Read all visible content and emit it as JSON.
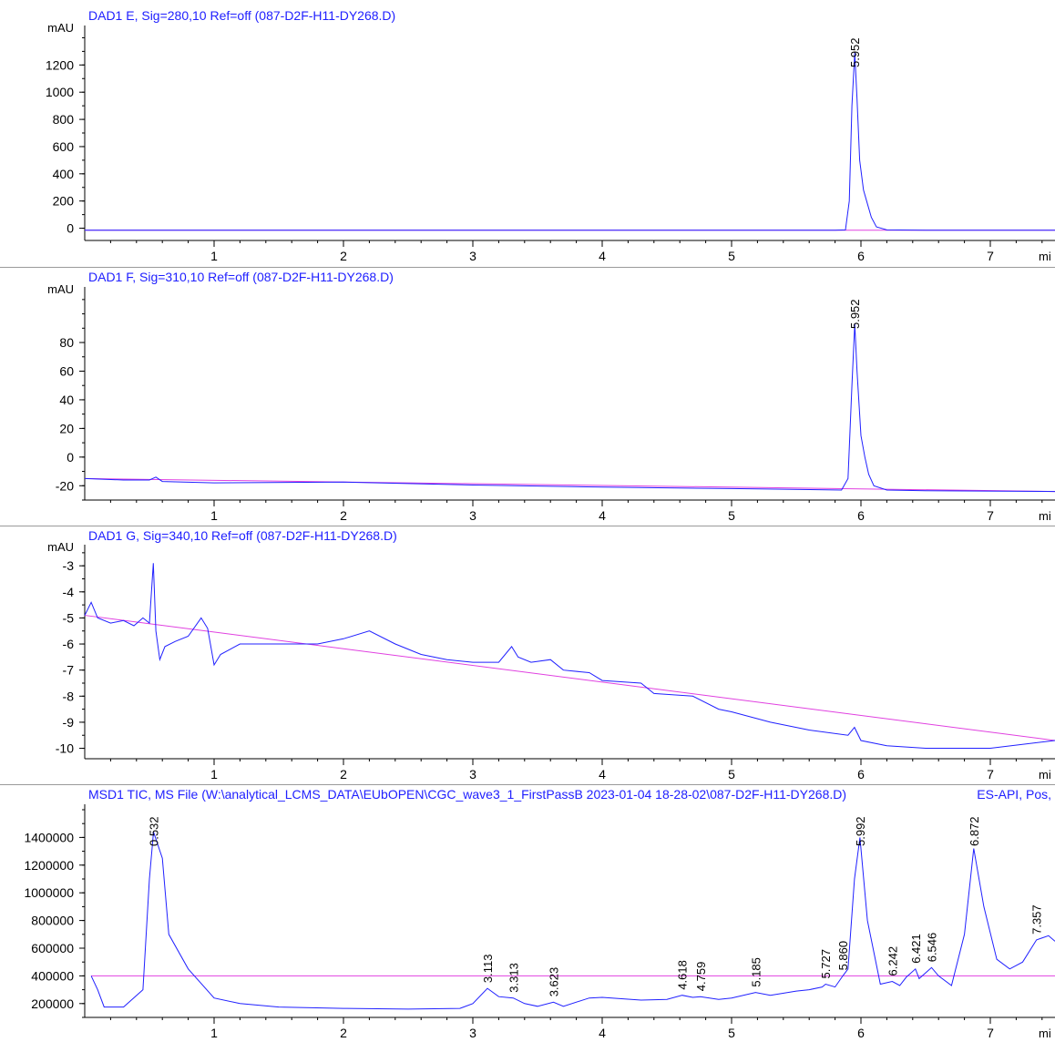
{
  "colors": {
    "trace": "#2020ff",
    "baseline": "#e040e0",
    "axis": "#000000",
    "title": "#2020ff"
  },
  "chart_data": [
    {
      "type": "line",
      "title": "DAD1 E, Sig=280,10 Ref=off (087-D2F-H11-DY268.D)",
      "ylabel": "mAU",
      "xunit": "mi",
      "xlim": [
        0.0,
        7.5
      ],
      "ylim": [
        -90,
        1450
      ],
      "xticks": [
        1,
        2,
        3,
        4,
        5,
        6,
        7
      ],
      "yticks": [
        0,
        200,
        400,
        600,
        800,
        1000,
        1200
      ],
      "series": [
        {
          "x": [
            0.0,
            2.0,
            4.0,
            5.8,
            5.88,
            5.91,
            5.93,
            5.952,
            5.97,
            5.99,
            6.02,
            6.05,
            6.08,
            6.12,
            6.2,
            6.5,
            7.5
          ],
          "y": [
            -15,
            -15,
            -15,
            -15,
            -12,
            200,
            900,
            1290,
            950,
            500,
            280,
            180,
            80,
            10,
            -12,
            -15,
            -15
          ]
        }
      ],
      "annotations": [
        {
          "x": 5.952,
          "label": "5.952"
        }
      ]
    },
    {
      "type": "line",
      "title": "DAD1 F, Sig=310,10 Ref=off (087-D2F-H11-DY268.D)",
      "ylabel": "mAU",
      "xunit": "mi",
      "xlim": [
        0.0,
        7.5
      ],
      "ylim": [
        -30,
        115
      ],
      "xticks": [
        1,
        2,
        3,
        4,
        5,
        6,
        7
      ],
      "yticks": [
        -20,
        0,
        20,
        40,
        60,
        80
      ],
      "series": [
        {
          "x": [
            0.0,
            0.3,
            0.5,
            0.55,
            0.6,
            1.0,
            2.0,
            3.0,
            4.0,
            5.0,
            5.85,
            5.9,
            5.93,
            5.952,
            5.97,
            6.0,
            6.03,
            6.06,
            6.1,
            6.2,
            6.5,
            7.5
          ],
          "y": [
            -15,
            -16,
            -16,
            -14,
            -17,
            -18,
            -17.5,
            -19.5,
            -21,
            -22,
            -23,
            -15,
            50,
            93,
            60,
            15,
            0,
            -12,
            -20,
            -23,
            -23.5,
            -24
          ]
        }
      ],
      "annotations": [
        {
          "x": 5.952,
          "label": "5.952"
        }
      ]
    },
    {
      "type": "line",
      "title": "DAD1 G, Sig=340,10 Ref=off (087-D2F-H11-DY268.D)",
      "ylabel": "mAU",
      "xunit": "mi",
      "xlim": [
        0.0,
        7.5
      ],
      "ylim": [
        -10.4,
        -2.4
      ],
      "xticks": [
        1,
        2,
        3,
        4,
        5,
        6,
        7
      ],
      "yticks": [
        -10,
        -9,
        -8,
        -7,
        -6,
        -5,
        -4,
        -3
      ],
      "series": [
        {
          "x": [
            0.0,
            0.05,
            0.1,
            0.2,
            0.3,
            0.38,
            0.45,
            0.5,
            0.53,
            0.55,
            0.58,
            0.62,
            0.7,
            0.8,
            0.9,
            0.95,
            1.0,
            1.05,
            1.2,
            1.5,
            1.8,
            2.0,
            2.2,
            2.4,
            2.6,
            2.8,
            3.0,
            3.2,
            3.3,
            3.35,
            3.45,
            3.6,
            3.7,
            3.9,
            4.0,
            4.3,
            4.4,
            4.7,
            4.9,
            5.0,
            5.3,
            5.6,
            5.9,
            5.95,
            6.0,
            6.2,
            6.5,
            7.0,
            7.5
          ],
          "y": [
            -4.9,
            -4.4,
            -5.0,
            -5.2,
            -5.1,
            -5.3,
            -5.0,
            -5.2,
            -2.9,
            -5.5,
            -6.6,
            -6.1,
            -5.9,
            -5.7,
            -5.0,
            -5.4,
            -6.8,
            -6.4,
            -6.0,
            -6.0,
            -6.0,
            -5.8,
            -5.5,
            -6.0,
            -6.4,
            -6.6,
            -6.7,
            -6.7,
            -6.1,
            -6.5,
            -6.7,
            -6.6,
            -7.0,
            -7.1,
            -7.4,
            -7.5,
            -7.9,
            -8.0,
            -8.5,
            -8.6,
            -9.0,
            -9.3,
            -9.5,
            -9.2,
            -9.7,
            -9.9,
            -10.0,
            -10.0,
            -9.7
          ]
        }
      ],
      "annotations": []
    },
    {
      "type": "line",
      "title": "MSD1 TIC, MS File (W:\\analytical_LCMS_DATA\\EUbOPEN\\CGC_wave3_1_FirstPassB 2023-01-04 18-28-02\\087-D2F-H11-DY268.D)",
      "title_right": "ES-API, Pos,",
      "ylabel": "",
      "xunit": "mi",
      "xlim": [
        0.0,
        7.5
      ],
      "ylim": [
        100000,
        1600000
      ],
      "xticks": [
        1,
        2,
        3,
        4,
        5,
        6,
        7
      ],
      "yticks": [
        200000,
        400000,
        600000,
        800000,
        1000000,
        1200000,
        1400000
      ],
      "series": [
        {
          "x": [
            0.05,
            0.1,
            0.15,
            0.3,
            0.45,
            0.5,
            0.532,
            0.6,
            0.65,
            0.8,
            1.0,
            1.2,
            1.5,
            2.0,
            2.5,
            2.9,
            3.0,
            3.113,
            3.2,
            3.313,
            3.4,
            3.5,
            3.623,
            3.7,
            3.9,
            4.0,
            4.3,
            4.5,
            4.618,
            4.7,
            4.759,
            4.9,
            5.0,
            5.185,
            5.3,
            5.5,
            5.6,
            5.7,
            5.727,
            5.8,
            5.86,
            5.9,
            5.95,
            5.992,
            6.05,
            6.15,
            6.242,
            6.3,
            6.35,
            6.421,
            6.45,
            6.546,
            6.6,
            6.7,
            6.8,
            6.872,
            6.95,
            7.05,
            7.15,
            7.25,
            7.357,
            7.45,
            7.5
          ],
          "y": [
            400000,
            300000,
            175000,
            175000,
            300000,
            1100000,
            1440000,
            1250000,
            700000,
            450000,
            240000,
            200000,
            175000,
            165000,
            160000,
            165000,
            200000,
            310000,
            250000,
            240000,
            200000,
            180000,
            210000,
            180000,
            240000,
            245000,
            225000,
            230000,
            260000,
            245000,
            250000,
            230000,
            240000,
            280000,
            260000,
            290000,
            300000,
            320000,
            340000,
            320000,
            400000,
            450000,
            1100000,
            1400000,
            800000,
            340000,
            360000,
            330000,
            390000,
            450000,
            380000,
            460000,
            400000,
            330000,
            700000,
            1320000,
            900000,
            520000,
            450000,
            500000,
            660000,
            690000,
            650000
          ]
        }
      ],
      "annotations": [
        {
          "x": 0.532,
          "label": "0.532"
        },
        {
          "x": 3.113,
          "label": "3.113"
        },
        {
          "x": 3.313,
          "label": "3.313"
        },
        {
          "x": 3.623,
          "label": "3.623"
        },
        {
          "x": 4.618,
          "label": "4.618"
        },
        {
          "x": 4.759,
          "label": "4.759"
        },
        {
          "x": 5.185,
          "label": "5.185"
        },
        {
          "x": 5.727,
          "label": "5.727"
        },
        {
          "x": 5.86,
          "label": "5.860"
        },
        {
          "x": 5.992,
          "label": "5.992"
        },
        {
          "x": 6.242,
          "label": "6.242"
        },
        {
          "x": 6.421,
          "label": "6.421"
        },
        {
          "x": 6.546,
          "label": "6.546"
        },
        {
          "x": 6.872,
          "label": "6.872"
        },
        {
          "x": 7.357,
          "label": "7.357"
        }
      ]
    }
  ]
}
